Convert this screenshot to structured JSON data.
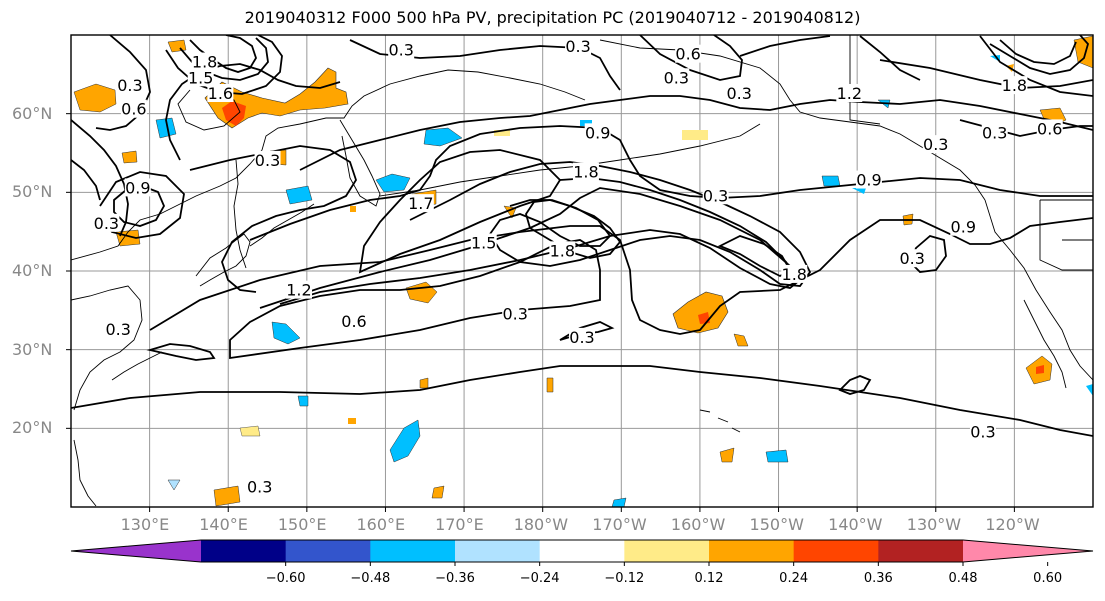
{
  "title": "2019040312 F000 500 hPa PV, precipitation PC (2019040712 - 2019040812)",
  "map": {
    "lon_min": 120,
    "lon_max": 250,
    "lat_min": 10,
    "lat_max": 70,
    "lat_ticks": [
      {
        "value": 20,
        "label": "20°N"
      },
      {
        "value": 30,
        "label": "30°N"
      },
      {
        "value": 40,
        "label": "40°N"
      },
      {
        "value": 50,
        "label": "50°N"
      },
      {
        "value": 60,
        "label": "60°N"
      }
    ],
    "lon_ticks": [
      {
        "value": 130,
        "label": "130°E"
      },
      {
        "value": 140,
        "label": "140°E"
      },
      {
        "value": 150,
        "label": "150°E"
      },
      {
        "value": 160,
        "label": "160°E"
      },
      {
        "value": 170,
        "label": "170°E"
      },
      {
        "value": 180,
        "label": "180°W"
      },
      {
        "value": 190,
        "label": "170°W"
      },
      {
        "value": 200,
        "label": "160°W"
      },
      {
        "value": 210,
        "label": "150°W"
      },
      {
        "value": 220,
        "label": "140°W"
      },
      {
        "value": 230,
        "label": "130°W"
      },
      {
        "value": 240,
        "label": "120°W"
      }
    ],
    "contour_labels": [
      {
        "text": "1.8",
        "lon": 137,
        "lat": 66.5
      },
      {
        "text": "1.5",
        "lon": 136.5,
        "lat": 64.5
      },
      {
        "text": "1.6",
        "lon": 139,
        "lat": 62.5
      },
      {
        "text": "0.3",
        "lon": 127.5,
        "lat": 63.5
      },
      {
        "text": "0.6",
        "lon": 128,
        "lat": 60.5
      },
      {
        "text": "0.9",
        "lon": 128.5,
        "lat": 50.5
      },
      {
        "text": "0.3",
        "lon": 124.5,
        "lat": 46
      },
      {
        "text": "0.3",
        "lon": 126,
        "lat": 32.5
      },
      {
        "text": "0.3",
        "lon": 145,
        "lat": 54
      },
      {
        "text": "0.3",
        "lon": 162,
        "lat": 68
      },
      {
        "text": "0.3",
        "lon": 184.5,
        "lat": 68.5
      },
      {
        "text": "0.6",
        "lon": 198.5,
        "lat": 67.5
      },
      {
        "text": "0.3",
        "lon": 197,
        "lat": 64.5
      },
      {
        "text": "0.3",
        "lon": 205,
        "lat": 62.5
      },
      {
        "text": "0.9",
        "lon": 187,
        "lat": 57.5
      },
      {
        "text": "1.8",
        "lon": 185.5,
        "lat": 52.5
      },
      {
        "text": "1.7",
        "lon": 164.5,
        "lat": 48.5
      },
      {
        "text": "1.5",
        "lon": 172.5,
        "lat": 43.5
      },
      {
        "text": "1.8",
        "lon": 182.5,
        "lat": 42.5
      },
      {
        "text": "0.3",
        "lon": 202,
        "lat": 49.5
      },
      {
        "text": "1.8",
        "lon": 212,
        "lat": 39.5
      },
      {
        "text": "1.2",
        "lon": 149,
        "lat": 37.5
      },
      {
        "text": "0.6",
        "lon": 156,
        "lat": 33.5
      },
      {
        "text": "0.3",
        "lon": 176.5,
        "lat": 34.5
      },
      {
        "text": "0.3",
        "lon": 185,
        "lat": 31.5
      },
      {
        "text": "1.2",
        "lon": 219,
        "lat": 62.5
      },
      {
        "text": "0.9",
        "lon": 221.5,
        "lat": 51.5
      },
      {
        "text": "0.3",
        "lon": 230,
        "lat": 56
      },
      {
        "text": "0.9",
        "lon": 233.5,
        "lat": 45.5
      },
      {
        "text": "0.3",
        "lon": 227,
        "lat": 41.5
      },
      {
        "text": "1.8",
        "lon": 240,
        "lat": 63.5
      },
      {
        "text": "0.6",
        "lon": 244.5,
        "lat": 58
      },
      {
        "text": "0.3",
        "lon": 237.5,
        "lat": 57.5
      },
      {
        "text": "0.3",
        "lon": 236,
        "lat": 19.5
      },
      {
        "text": "0.3",
        "lon": 144,
        "lat": 12.5
      }
    ]
  },
  "colorbar": {
    "colors": [
      "#9933cc",
      "#000088",
      "#3355cc",
      "#00bfff",
      "#b0e2ff",
      "#ffffff",
      "#ffeb88",
      "#ffa500",
      "#ff4500",
      "#b22222",
      "#ff88aa"
    ],
    "tick_labels": [
      "−0.60",
      "−0.48",
      "−0.36",
      "−0.24",
      "−0.12",
      "0.12",
      "0.24",
      "0.36",
      "0.48",
      "0.60"
    ]
  },
  "colors": {
    "positive_fill": "#ffa500",
    "positive_light": "#ffeb88",
    "positive_strong": "#ff4500",
    "negative_fill": "#00bfff",
    "negative_light": "#b0e2ff",
    "gridline": "#999999",
    "axis_label": "#888888"
  }
}
